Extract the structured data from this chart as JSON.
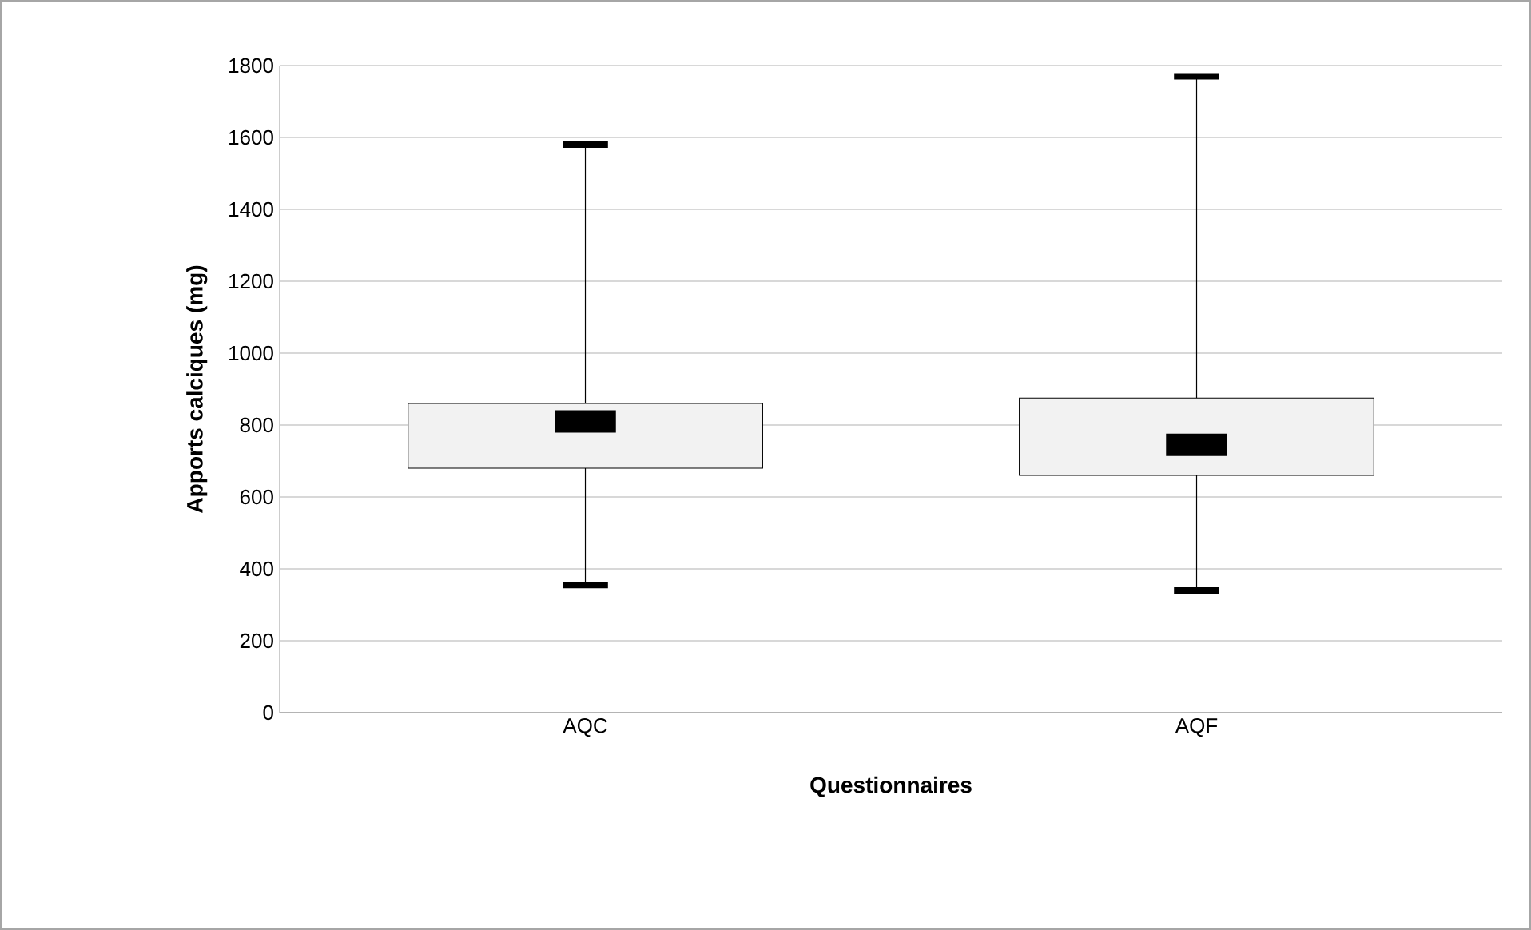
{
  "chart_data": {
    "type": "box",
    "xlabel": "Questionnaires",
    "ylabel": "Apports calciques (mg)",
    "categories": [
      "AQC",
      "AQF"
    ],
    "boxes": [
      {
        "low": 355,
        "q1": 680,
        "median": 810,
        "q3": 860,
        "high": 1580
      },
      {
        "low": 340,
        "q1": 660,
        "median": 745,
        "q3": 875,
        "high": 1770
      }
    ],
    "color": "#f2f2f2",
    "ylim": [
      0,
      1800
    ],
    "yticks": [
      0,
      200,
      400,
      600,
      800,
      1000,
      1200,
      1400,
      1600,
      1800
    ],
    "grid": "y"
  }
}
